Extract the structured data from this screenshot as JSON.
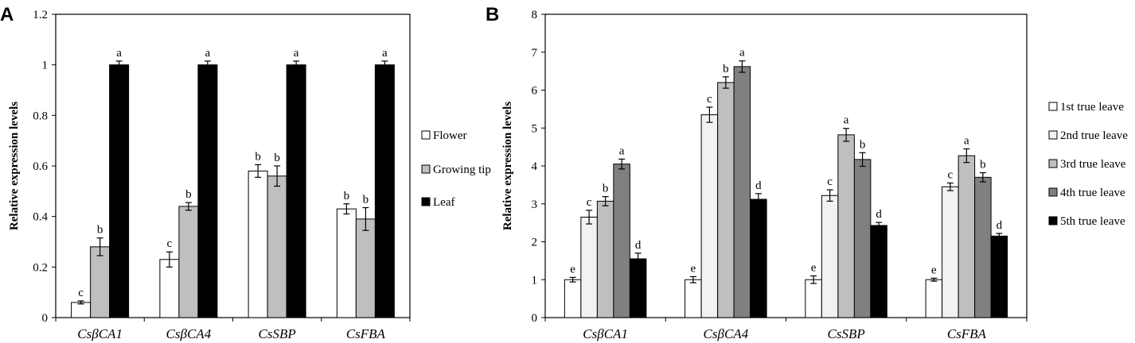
{
  "chart_data": [
    {
      "panel": "A",
      "type": "bar",
      "ylabel": "Relative expression levels",
      "ylim": [
        0,
        1.2
      ],
      "yticks": [
        "0",
        "0.2",
        "0.4",
        "0.6",
        "0.8",
        "1",
        "1.2"
      ],
      "ytick_values": [
        0,
        0.2,
        0.4,
        0.6,
        0.8,
        1,
        1.2
      ],
      "categories": [
        "CsβCA1",
        "CsβCA4",
        "CsSBP",
        "CsFBA"
      ],
      "legend_position": "right",
      "series": [
        {
          "name": "Flower",
          "color": "#ffffff",
          "values": [
            0.06,
            0.23,
            0.58,
            0.43
          ],
          "errors": [
            0.006,
            0.03,
            0.025,
            0.02
          ],
          "labels": [
            "c",
            "c",
            "b",
            "b"
          ]
        },
        {
          "name": "Growing tip",
          "color": "#bfbfbf",
          "values": [
            0.28,
            0.44,
            0.56,
            0.39
          ],
          "errors": [
            0.035,
            0.015,
            0.04,
            0.045
          ],
          "labels": [
            "b",
            "b",
            "b",
            "b"
          ]
        },
        {
          "name": "Leaf",
          "color": "#000000",
          "values": [
            1.0,
            1.0,
            1.0,
            1.0
          ],
          "errors": [
            0.015,
            0.015,
            0.015,
            0.015
          ],
          "labels": [
            "a",
            "a",
            "a",
            "a"
          ]
        }
      ]
    },
    {
      "panel": "B",
      "type": "bar",
      "ylabel": "Relative expression levels",
      "ylim": [
        0,
        8
      ],
      "yticks": [
        "0",
        "1",
        "2",
        "3",
        "4",
        "5",
        "6",
        "7",
        "8"
      ],
      "ytick_values": [
        0,
        1,
        2,
        3,
        4,
        5,
        6,
        7,
        8
      ],
      "categories": [
        "CsβCA1",
        "CsβCA4",
        "CsSBP",
        "CsFBA"
      ],
      "legend_position": "right",
      "series": [
        {
          "name": "1st true leave",
          "color": "#ffffff",
          "values": [
            1.0,
            1.0,
            1.0,
            1.0
          ],
          "errors": [
            0.06,
            0.08,
            0.1,
            0.04
          ],
          "labels": [
            "e",
            "e",
            "e",
            "e"
          ]
        },
        {
          "name": "2nd true leave",
          "color": "#f2f2f2",
          "values": [
            2.65,
            5.35,
            3.22,
            3.45
          ],
          "errors": [
            0.18,
            0.2,
            0.15,
            0.1
          ],
          "labels": [
            "c",
            "c",
            "c",
            "c"
          ]
        },
        {
          "name": "3rd true leave",
          "color": "#bfbfbf",
          "values": [
            3.07,
            6.2,
            4.82,
            4.27
          ],
          "errors": [
            0.12,
            0.15,
            0.17,
            0.18
          ],
          "labels": [
            "b",
            "b",
            "a",
            "a"
          ]
        },
        {
          "name": "4th true leave",
          "color": "#808080",
          "values": [
            4.05,
            6.62,
            4.17,
            3.7
          ],
          "errors": [
            0.13,
            0.15,
            0.18,
            0.12
          ],
          "labels": [
            "a",
            "a",
            "b",
            "b"
          ]
        },
        {
          "name": "5th true leave",
          "color": "#000000",
          "values": [
            1.55,
            3.12,
            2.43,
            2.15
          ],
          "errors": [
            0.15,
            0.15,
            0.08,
            0.07
          ],
          "labels": [
            "d",
            "d",
            "d",
            "d"
          ]
        }
      ]
    }
  ]
}
